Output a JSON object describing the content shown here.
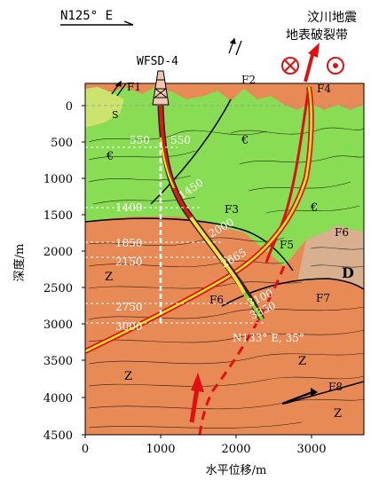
{
  "header": {
    "direction_left": "N125° E",
    "event_line1": "汶川地震",
    "event_line2": "地表破裂带"
  },
  "borehole": {
    "name": "WFSD-4"
  },
  "faults": [
    "F1",
    "F2",
    "F3",
    "F4",
    "F5",
    "F6",
    "F6",
    "F7",
    "F8"
  ],
  "units": [
    "€",
    "€",
    "€",
    "Z",
    "Z",
    "Z",
    "Z",
    "D",
    "S"
  ],
  "annotations": {
    "dir_bottom": "N133° E, 35°",
    "d550a": "550",
    "d550b": "550",
    "d1450": "1450",
    "d1400": "1400",
    "d2000": "2000",
    "d1850": "1850",
    "d2150": "2150",
    "d2665": "2665",
    "d2750": "2750",
    "d3000": "3000",
    "d3100": "3100",
    "d3350": "3350"
  },
  "axes": {
    "ylabel": "深度/m",
    "xlabel": "水平位移/m",
    "yticks": [
      "0",
      "500",
      "1000",
      "1500",
      "2000",
      "2500",
      "3000",
      "3500",
      "4000",
      "4500"
    ],
    "xticks": [
      "0",
      "1000",
      "2000",
      "3000"
    ]
  },
  "colors": {
    "green": "#88dd55",
    "orange": "#e88a55",
    "tan": "#d8b090",
    "yellow_green": "#cce36e",
    "red": "#e01010",
    "yellow": "#f7e91a"
  }
}
